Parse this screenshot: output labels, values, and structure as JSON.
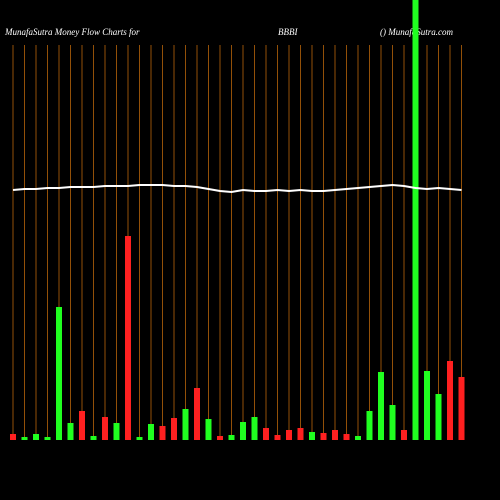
{
  "chart_data": {
    "type": "bar",
    "title": "MunafaSutra  Money Flow  Charts for",
    "symbol": "BBBI",
    "source": "() MunafaSutra.com",
    "categories": [
      null,
      null,
      null,
      null,
      null,
      null,
      null,
      null,
      null,
      null,
      null,
      null,
      null,
      null,
      null,
      null,
      null,
      null,
      null,
      null,
      null,
      null,
      null,
      null,
      null,
      null,
      null,
      null,
      null,
      null,
      null,
      null,
      null,
      null,
      null,
      null,
      null,
      null,
      null,
      null
    ],
    "ylim": [
      0,
      440
    ],
    "grid_color": "#b8650a",
    "series": [
      {
        "type": "bar",
        "values": [
          6,
          3,
          6,
          3,
          133,
          17,
          29,
          4,
          23,
          17,
          204,
          3,
          16,
          14,
          22,
          31,
          52,
          21,
          4,
          5,
          18,
          23,
          12,
          5,
          10,
          12,
          8,
          7,
          10,
          6,
          4,
          29,
          68,
          35,
          10,
          440,
          69,
          46,
          79,
          63
        ],
        "colors": [
          "#ff2020",
          "#20ff20",
          "#20ff20",
          "#20ff20",
          "#20ff20",
          "#20ff20",
          "#ff2020",
          "#20ff20",
          "#ff2020",
          "#20ff20",
          "#ff2020",
          "#20ff20",
          "#20ff20",
          "#ff2020",
          "#ff2020",
          "#20ff20",
          "#ff2020",
          "#20ff20",
          "#ff2020",
          "#20ff20",
          "#20ff20",
          "#20ff20",
          "#ff2020",
          "#ff2020",
          "#ff2020",
          "#ff2020",
          "#20ff20",
          "#ff2020",
          "#ff2020",
          "#ff2020",
          "#20ff20",
          "#20ff20",
          "#20ff20",
          "#20ff20",
          "#ff2020",
          "#20ff20",
          "#20ff20",
          "#20ff20",
          "#ff2020",
          "#ff2020"
        ]
      },
      {
        "type": "line",
        "color": "#ffffff",
        "values": [
          250,
          251,
          251,
          252,
          252,
          253,
          253,
          253,
          254,
          254,
          254,
          255,
          255,
          255,
          254,
          254,
          253,
          251,
          249,
          248,
          250,
          249,
          249,
          250,
          249,
          250,
          249,
          249,
          250,
          251,
          252,
          253,
          254,
          255,
          254,
          252,
          251,
          252,
          251,
          250
        ]
      }
    ]
  }
}
